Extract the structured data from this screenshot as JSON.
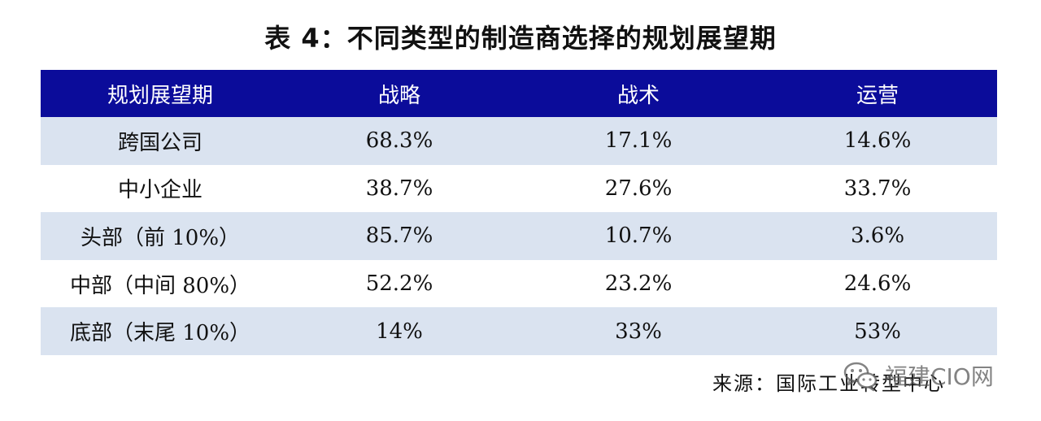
{
  "title": "表 4：不同类型的制造商选择的规划展望期",
  "table": {
    "headers": [
      "规划展望期",
      "战略",
      "战术",
      "运营"
    ],
    "rows": [
      [
        "跨国公司",
        "68.3%",
        "17.1%",
        "14.6%"
      ],
      [
        "中小企业",
        "38.7%",
        "27.6%",
        "33.7%"
      ],
      [
        "头部（前 10%）",
        "85.7%",
        "10.7%",
        "3.6%"
      ],
      [
        "中部（中间 80%）",
        "52.2%",
        "23.2%",
        "24.6%"
      ],
      [
        "底部（末尾 10%）",
        "14%",
        "33%",
        "53%"
      ]
    ]
  },
  "source": "来源：国际工业转型中心",
  "watermark": {
    "text": "福建CIO网",
    "icon": "wechat-icon"
  },
  "colors": {
    "header_bg": "#0b0c9a",
    "stripe_bg": "#dae3f0"
  }
}
